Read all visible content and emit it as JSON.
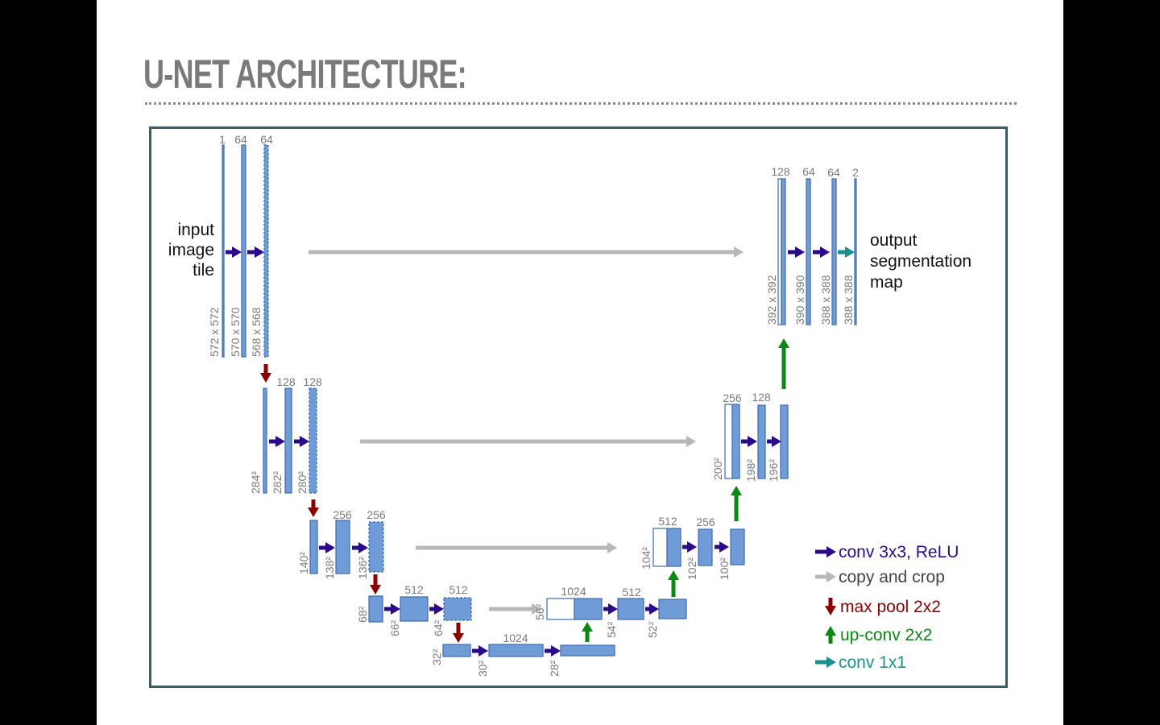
{
  "slide": {
    "title": "U-NET ARCHITECTURE:"
  },
  "colors": {
    "feature_map": "#6f9bd6",
    "feature_border": "#3c6bb0",
    "conv": "#2b0a8a",
    "copy": "#b8b8b8",
    "pool": "#8b0000",
    "upconv": "#0a8a12",
    "conv1x1": "#1a9090"
  },
  "diagram": {
    "input_label": [
      "input",
      "image",
      "tile"
    ],
    "output_label": [
      "output",
      "segmentation",
      "map"
    ],
    "channels": {
      "l1": [
        "1",
        "64",
        "64"
      ],
      "l2": [
        "128",
        "128"
      ],
      "l3": [
        "256",
        "256"
      ],
      "l4": [
        "512",
        "512"
      ],
      "l5": [
        "1024"
      ],
      "u4": [
        "1024",
        "512"
      ],
      "u3": [
        "512",
        "256"
      ],
      "u2": [
        "256",
        "128"
      ],
      "u1": [
        "128",
        "64",
        "64",
        "2"
      ]
    },
    "sizes": {
      "l1": [
        "572 x 572",
        "570 x 570",
        "568 x 568"
      ],
      "l2": [
        "284²",
        "282²",
        "280²"
      ],
      "l3": [
        "140²",
        "138²",
        "136²"
      ],
      "l4": [
        "68²",
        "66²",
        "64²"
      ],
      "l5": [
        "32²",
        "30²",
        "28²"
      ],
      "u4": [
        "56²",
        "54²",
        "52²"
      ],
      "u3": [
        "104²",
        "102²",
        "100²"
      ],
      "u2": [
        "200²",
        "198²",
        "196²"
      ],
      "u1": [
        "392 x 392",
        "390 x 390",
        "388 x 388",
        "388 x 388"
      ]
    }
  },
  "legend": [
    {
      "label": "conv 3x3, ReLU",
      "color": "#2b0a8a",
      "icon": "arrow-right-icon"
    },
    {
      "label": "copy and crop",
      "color": "#444444",
      "icon": "arrow-right-icon"
    },
    {
      "label": "max pool 2x2",
      "color": "#8b0000",
      "icon": "arrow-down-icon"
    },
    {
      "label": "up-conv 2x2",
      "color": "#0a8a12",
      "icon": "arrow-up-icon"
    },
    {
      "label": "conv 1x1",
      "color": "#1a9090",
      "icon": "arrow-right-icon"
    }
  ]
}
